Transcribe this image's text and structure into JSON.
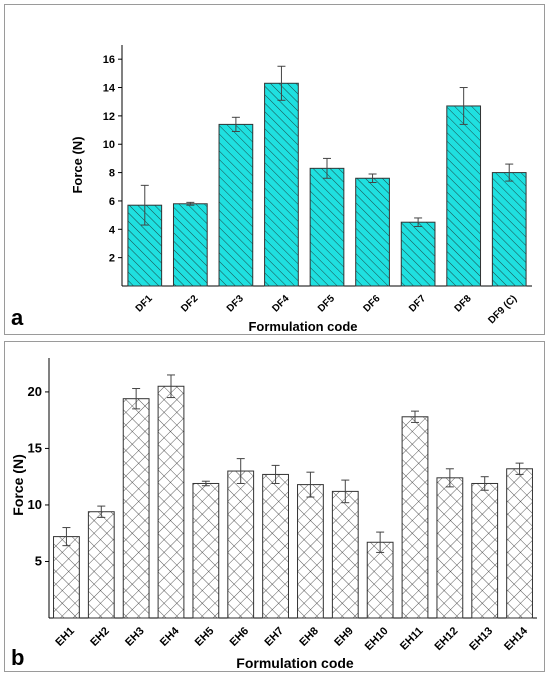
{
  "chart_data": [
    {
      "type": "bar",
      "panel_label": "a",
      "xlabel": "Formulation code",
      "ylabel": "Force (N)",
      "categories": [
        "DF1",
        "DF2",
        "DF3",
        "DF4",
        "DF5",
        "DF6",
        "DF7",
        "DF8",
        "DF9 (C)"
      ],
      "values": [
        5.7,
        5.8,
        11.4,
        14.3,
        8.3,
        7.6,
        4.5,
        12.7,
        8.0
      ],
      "errors": [
        1.4,
        0.1,
        0.5,
        1.2,
        0.7,
        0.3,
        0.3,
        1.3,
        0.6
      ],
      "ylim": [
        0,
        17
      ],
      "yticks": [
        2,
        4,
        6,
        8,
        10,
        12,
        14,
        16
      ],
      "grid": false,
      "bar_fill": "#1fe0e0",
      "bar_pattern": "diagonal-hatch"
    },
    {
      "type": "bar",
      "panel_label": "b",
      "xlabel": "Formulation code",
      "ylabel": "Force (N)",
      "categories": [
        "EH1",
        "EH2",
        "EH3",
        "EH4",
        "EH5",
        "EH6",
        "EH7",
        "EH8",
        "EH9",
        "EH10",
        "EH11",
        "EH12",
        "EH13",
        "EH14"
      ],
      "values": [
        7.2,
        9.4,
        19.4,
        20.5,
        11.9,
        13.0,
        12.7,
        11.8,
        11.2,
        6.7,
        17.8,
        12.4,
        11.9,
        13.2
      ],
      "errors": [
        0.8,
        0.5,
        0.9,
        1.0,
        0.2,
        1.1,
        0.8,
        1.1,
        1.0,
        0.9,
        0.5,
        0.8,
        0.6,
        0.5
      ],
      "ylim": [
        0,
        23
      ],
      "yticks": [
        5,
        10,
        15,
        20
      ],
      "grid": false,
      "bar_fill": "#ffffff",
      "bar_pattern": "cross-hatch"
    }
  ]
}
